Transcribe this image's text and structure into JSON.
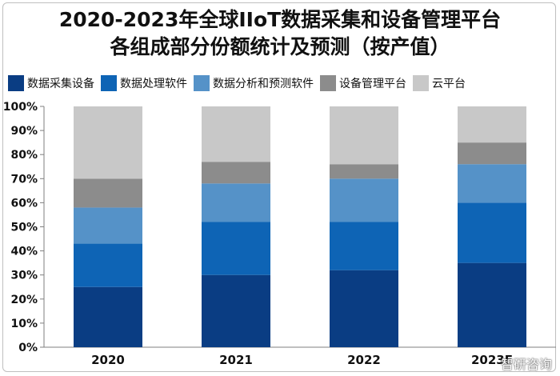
{
  "chart_data": {
    "type": "bar",
    "stacked": true,
    "title_lines": [
      "2020-2023年全球IIoT数据采集和设备管理平台",
      "各组成部分份额统计及预测（按产值）"
    ],
    "categories": [
      "2020",
      "2021",
      "2022",
      "2023E"
    ],
    "series": [
      {
        "name": "数据采集设备",
        "color": "#0a3d83",
        "values": [
          25,
          30,
          32,
          35
        ]
      },
      {
        "name": "数据处理软件",
        "color": "#0e64b5",
        "values": [
          18,
          22,
          20,
          25
        ]
      },
      {
        "name": "数据分析和预测软件",
        "color": "#5592c8",
        "values": [
          15,
          16,
          18,
          16
        ]
      },
      {
        "name": "设备管理平台",
        "color": "#8c8c8c",
        "values": [
          12,
          9,
          6,
          9
        ]
      },
      {
        "name": "云平台",
        "color": "#c8c8c8",
        "values": [
          30,
          23,
          24,
          15
        ]
      }
    ],
    "yticks": [
      "0%",
      "10%",
      "20%",
      "30%",
      "40%",
      "50%",
      "60%",
      "70%",
      "80%",
      "90%",
      "100%"
    ],
    "ylim": [
      0,
      100
    ],
    "legend_position": "top",
    "grid": false
  },
  "watermark": "智研咨询"
}
